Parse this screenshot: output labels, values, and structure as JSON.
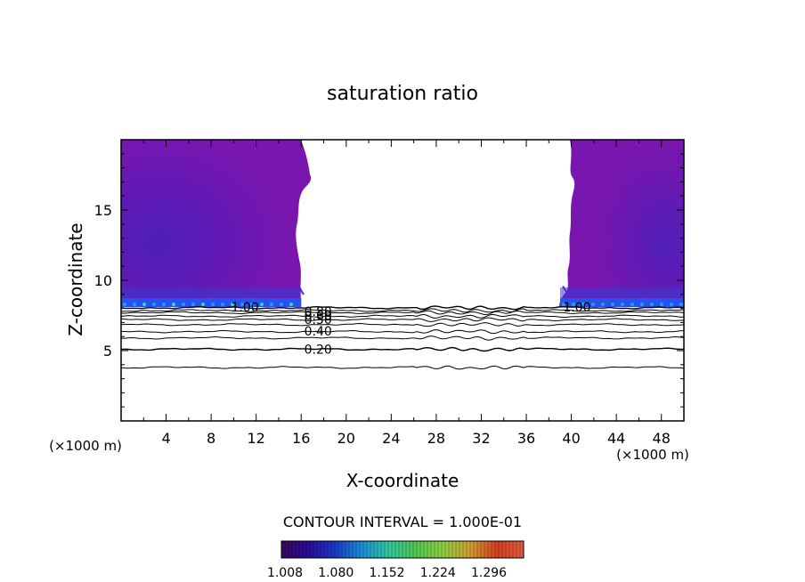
{
  "chart_data": {
    "type": "heatmap",
    "title": "saturation ratio",
    "xlabel": "X-coordinate",
    "ylabel": "Z-coordinate",
    "x_unit": "(×1000 m)",
    "z_unit": "(×1000 m)",
    "xlim": [
      0,
      50
    ],
    "ylim": [
      0,
      20
    ],
    "x_ticks": [
      "4",
      "8",
      "12",
      "16",
      "20",
      "24",
      "28",
      "32",
      "36",
      "40",
      "44",
      "48"
    ],
    "y_ticks": [
      "5",
      "10",
      "15"
    ],
    "contour_interval_label": "CONTOUR INTERVAL = 1.000E-01",
    "contour_labels": [
      {
        "text": "1.00",
        "x": 11,
        "z": 8.1
      },
      {
        "text": "0.80",
        "x": 17.5,
        "z": 7.8
      },
      {
        "text": "0.60",
        "x": 17.5,
        "z": 7.5
      },
      {
        "text": "0.50",
        "x": 17.5,
        "z": 7.2
      },
      {
        "text": "0.40",
        "x": 17.5,
        "z": 6.4
      },
      {
        "text": "0.20",
        "x": 17.5,
        "z": 5.1
      },
      {
        "text": "1.00",
        "x": 40.5,
        "z": 8.1
      }
    ],
    "contour_levels": [
      {
        "level": 1.0,
        "z": 8.05
      },
      {
        "level": 0.9,
        "z": 7.85
      },
      {
        "level": 0.8,
        "z": 7.7
      },
      {
        "level": 0.7,
        "z": 7.45
      },
      {
        "level": 0.6,
        "z": 7.2
      },
      {
        "level": 0.5,
        "z": 6.85
      },
      {
        "level": 0.4,
        "z": 6.35
      },
      {
        "level": 0.3,
        "z": 5.9
      },
      {
        "level": 0.2,
        "z": 5.1
      },
      {
        "level": 0.1,
        "z": 3.8
      }
    ],
    "supersaturated_regions": [
      {
        "x_range": [
          0,
          16
        ],
        "z_range": [
          8.1,
          20
        ]
      },
      {
        "x_range": [
          39,
          50
        ],
        "z_range": [
          8.1,
          20
        ]
      }
    ],
    "colorbar": {
      "min": 1.008,
      "max": 1.35,
      "tick_labels": [
        "1.008",
        "1.080",
        "1.152",
        "1.224",
        "1.296"
      ],
      "colors": [
        "#3a0a5a",
        "#2a0a9a",
        "#1a3ac8",
        "#1a90d8",
        "#30c8a0",
        "#50c850",
        "#90d040",
        "#d0a030",
        "#d84020",
        "#e05a40"
      ]
    },
    "colors": {
      "fill_main": "#7a16b0",
      "fill_dark": "#5a1ab8",
      "fill_bottom": "#2a50f0",
      "fill_sparkle": "#30d8c0"
    }
  }
}
